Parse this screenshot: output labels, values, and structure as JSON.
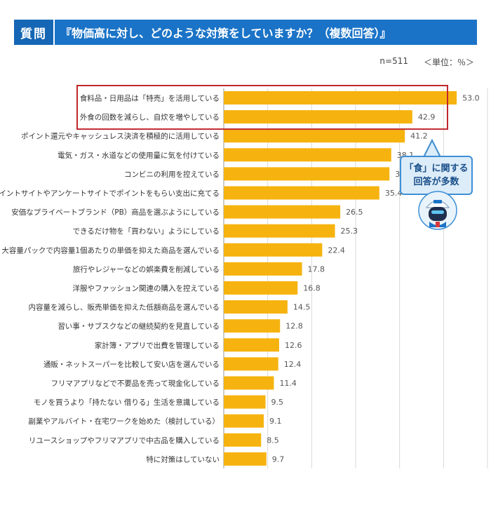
{
  "header": {
    "badge": "質問",
    "question": "『物価高に対し、どのような対策をしていますか？（複数回答）』"
  },
  "meta": {
    "n": "n=511",
    "unit": "＜単位：％＞"
  },
  "callout": {
    "line1": "「食」に関する",
    "line2": "回答が多数"
  },
  "colors": {
    "bar": "#f6b30f",
    "header": "#1a73c7",
    "highlight": "#c0262d",
    "callout_border": "#3d8fd6",
    "callout_bg": "#dcecf8"
  },
  "chart_data": {
    "type": "bar",
    "orientation": "horizontal",
    "categories": [
      "食料品・日用品は「特売」を活用している",
      "外食の回数を減らし、自炊を増やしている",
      "ポイント還元やキャッシュレス決済を積極的に活用している",
      "電気・ガス・水道などの使用量に気を付けている",
      "コンビニの利用を控えている",
      "ポイントサイトやアンケートサイトでポイントをもらい支出に充てる",
      "安価なプライベートブランド（PB）商品を選ぶようにしている",
      "できるだけ物を「買わない」ようにしている",
      "大容量パックで内容量1個あたりの単価を抑えた商品を選んでいる",
      "旅行やレジャーなどの娯楽費を削減している",
      "洋服やファッション関連の購入を控えている",
      "内容量を減らし、販売単価を抑えた低額商品を選んでいる",
      "習い事・サブスクなどの継続契約を見直している",
      "家計簿・アプリで出費を管理している",
      "通販・ネットスーパーを比較して安い店を選んでいる",
      "フリマアプリなどで不要品を売って現金化している",
      "モノを買うより「持たない 借りる」生活を意識している",
      "副業やアルバイト・在宅ワークを始めた（検討している）",
      "リユースショップやフリマアプリで中古品を購入している",
      "特に対策はしていない"
    ],
    "values": [
      53.0,
      42.9,
      41.2,
      38.1,
      37.7,
      35.4,
      26.5,
      25.3,
      22.4,
      17.8,
      16.8,
      14.5,
      12.8,
      12.6,
      12.4,
      11.4,
      9.5,
      9.1,
      8.5,
      9.7
    ],
    "value_labels": [
      "53.0",
      "42.9",
      "41.2",
      "38.1",
      "37.7",
      "35.4",
      "26.5",
      "25.3",
      "22.4",
      "17.8",
      "16.8",
      "14.5",
      "12.8",
      "12.6",
      "12.4",
      "11.4",
      "9.5",
      "9.1",
      "8.5",
      "9.7"
    ],
    "xlim": [
      0,
      60
    ],
    "grid": true,
    "highlighted_categories": [
      0,
      1
    ]
  }
}
